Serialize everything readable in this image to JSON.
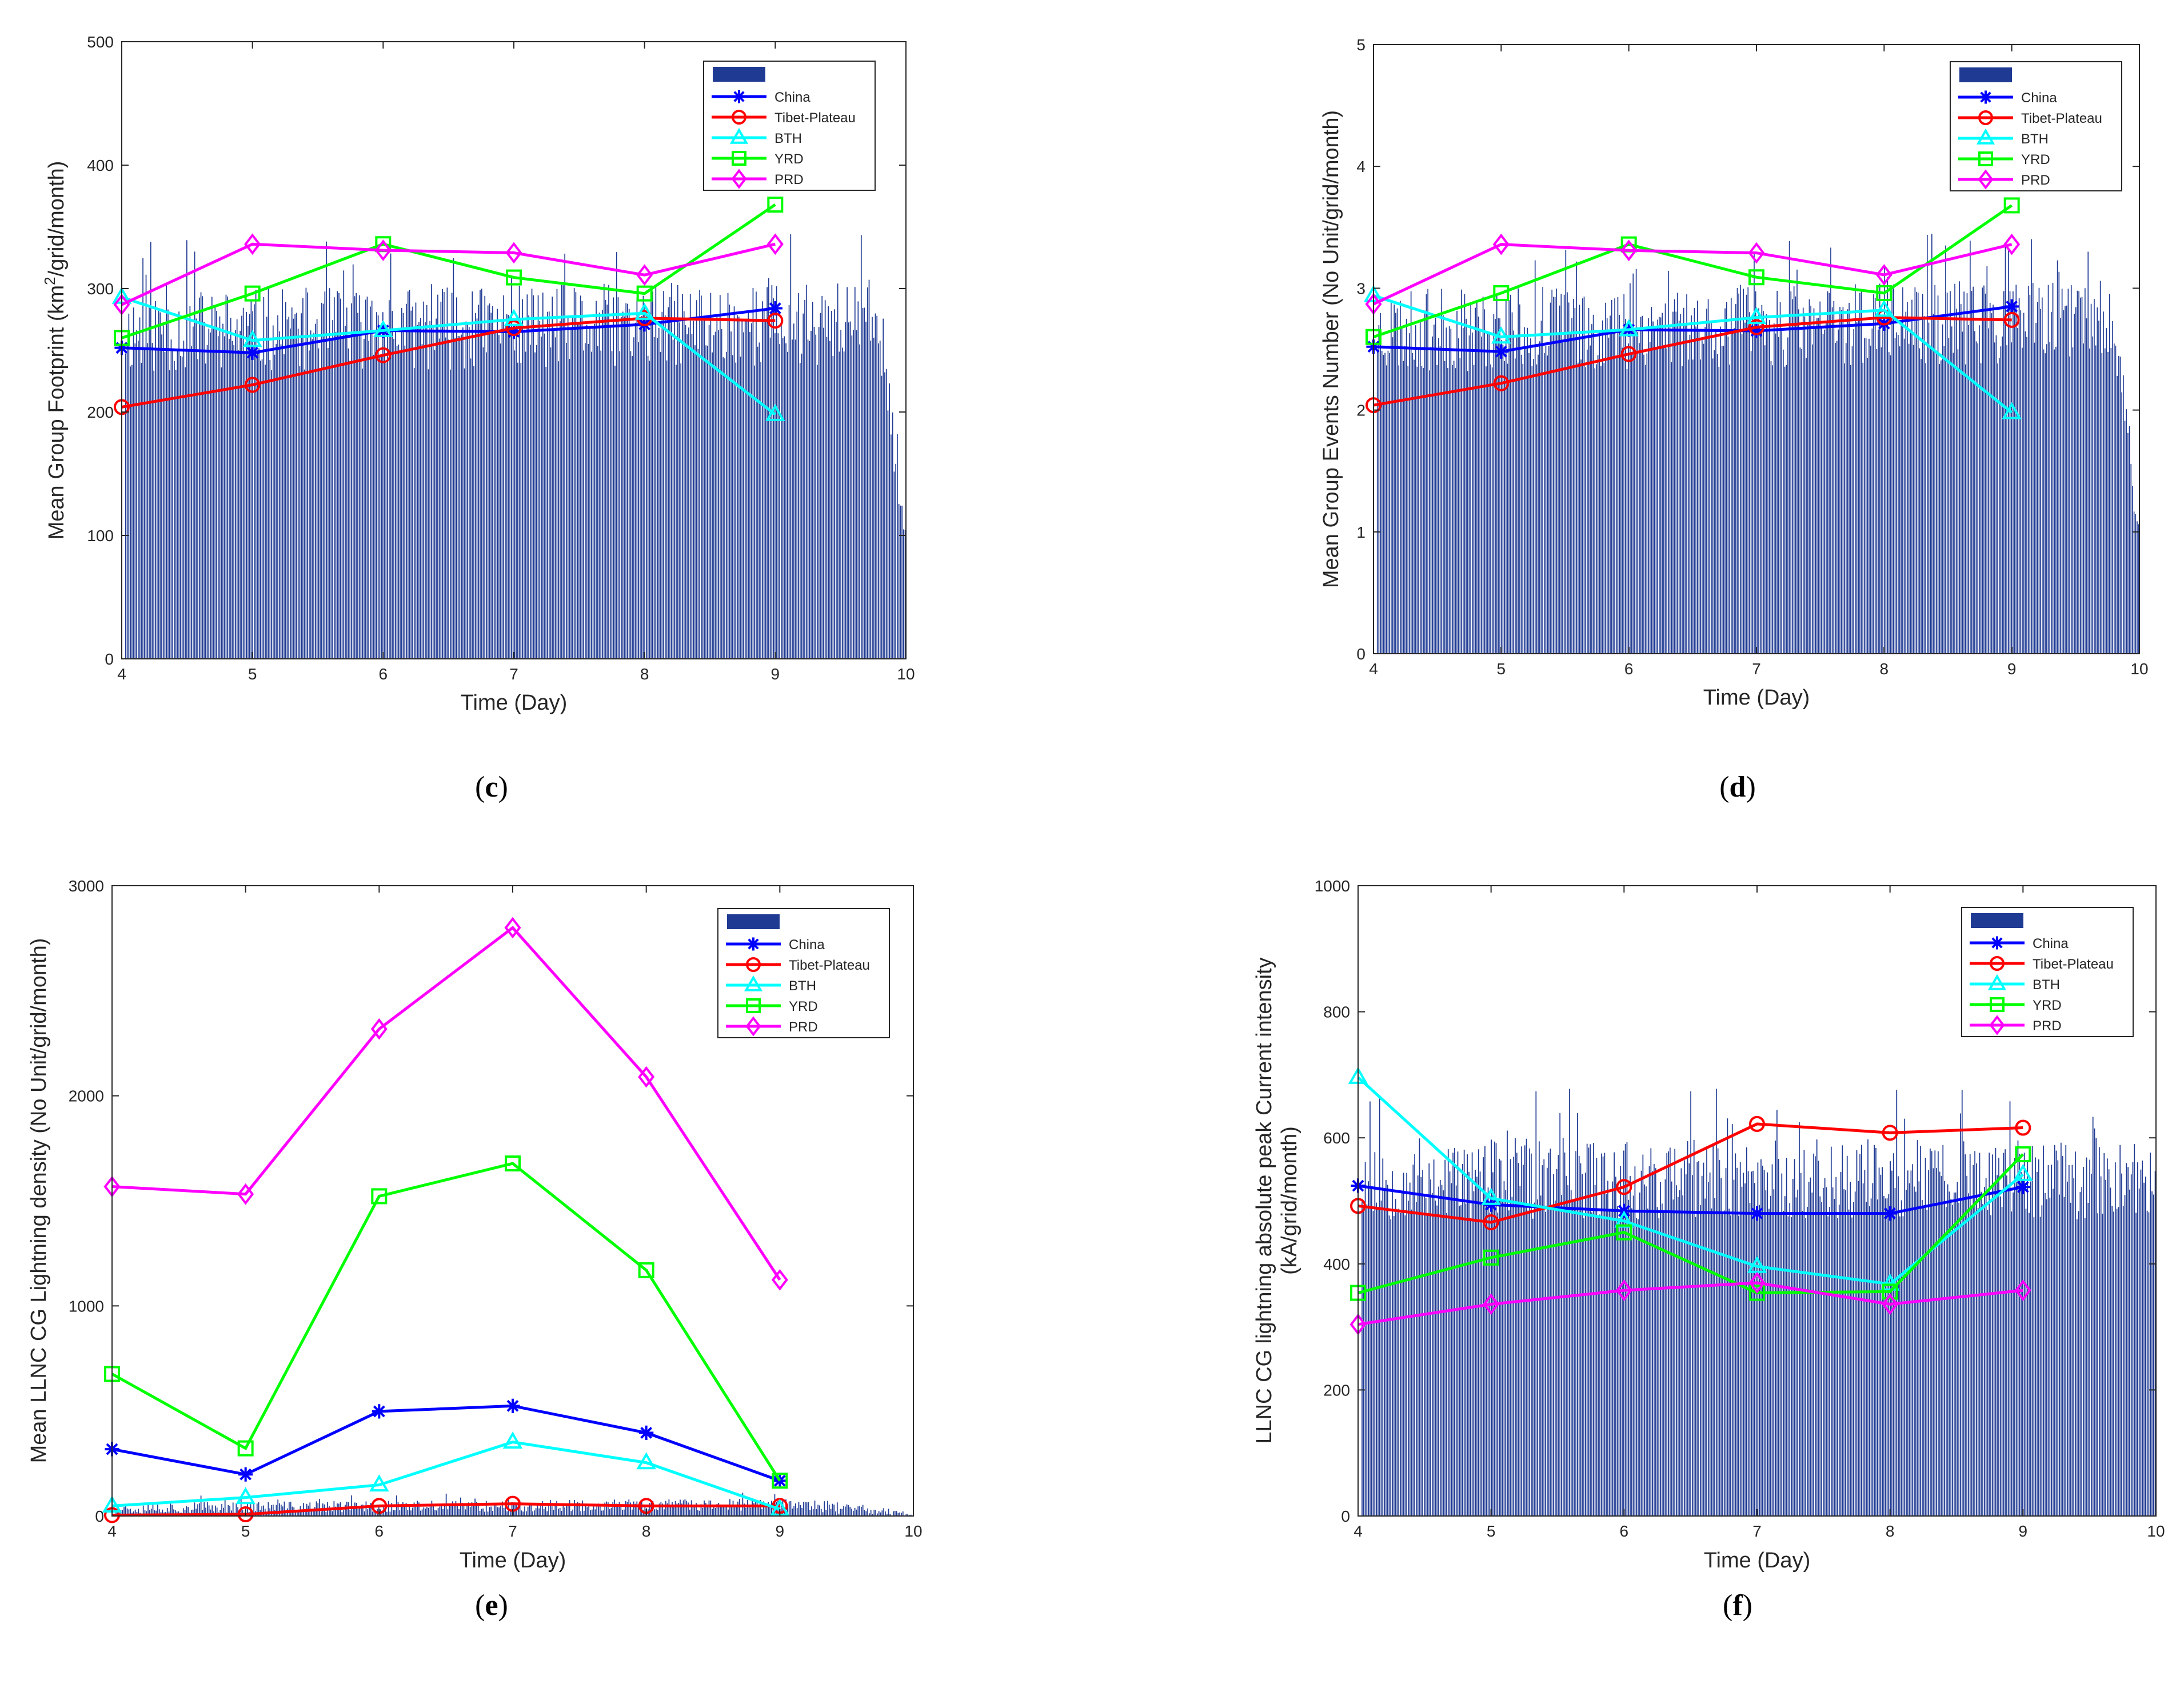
{
  "figure": {
    "panels_order": [
      "c",
      "d",
      "e",
      "f"
    ]
  },
  "chart_data": [
    {
      "panel": "c",
      "panel_label": "c",
      "type": "line",
      "xlabel": "Time (Day)",
      "ylabel_main": "Mean Group Footprint (km",
      "ylabel_sup": "2",
      "ylabel_after": "/grid/month)",
      "xlim": [
        4,
        10
      ],
      "ylim": [
        0,
        500
      ],
      "xticks": [
        4,
        5,
        6,
        7,
        8,
        9,
        10
      ],
      "yticks": [
        0,
        100,
        200,
        300,
        400,
        500
      ],
      "legend": {
        "placement": "top-right",
        "bar_entry_label": "",
        "entries": [
          "China",
          "Tibet-Plateau",
          "BTH",
          "YRD",
          "PRD"
        ]
      },
      "x": [
        4,
        5,
        6,
        7,
        8,
        9
      ],
      "series": [
        {
          "name": "China",
          "color": "#0000ff",
          "marker": "star",
          "values": [
            252,
            248,
            266,
            265,
            271,
            284
          ]
        },
        {
          "name": "Tibet-Plateau",
          "color": "#ff0000",
          "marker": "circle",
          "values": [
            204,
            222,
            246,
            268,
            276,
            274
          ]
        },
        {
          "name": "BTH",
          "color": "#00ffff",
          "marker": "triangle",
          "values": [
            293,
            258,
            266,
            275,
            280,
            198
          ]
        },
        {
          "name": "YRD",
          "color": "#00ff00",
          "marker": "square",
          "values": [
            260,
            296,
            336,
            309,
            296,
            368
          ]
        },
        {
          "name": "PRD",
          "color": "#ff00ff",
          "marker": "diamond",
          "values": [
            287,
            336,
            331,
            329,
            311,
            336
          ]
        }
      ],
      "bars": {
        "color": "#1f3a93",
        "bar_width_days": 0.012,
        "baseline": 265,
        "amplitude": 34,
        "trend": 4,
        "taper_start": 9.8,
        "taper_end": 10.0,
        "taper_floor": 100,
        "seed": 11
      }
    },
    {
      "panel": "d",
      "panel_label": "d",
      "type": "line",
      "xlabel": "Time (Day)",
      "ylabel_main": "Mean Group Events Number (No Unit/grid/month)",
      "ylabel_sup": "",
      "ylabel_after": "",
      "xlim": [
        4,
        10
      ],
      "ylim": [
        0,
        5
      ],
      "xticks": [
        4,
        5,
        6,
        7,
        8,
        9,
        10
      ],
      "yticks": [
        0,
        1,
        2,
        3,
        4,
        5
      ],
      "legend": {
        "placement": "top-right",
        "bar_entry_label": "",
        "entries": [
          "China",
          "Tibet-Plateau",
          "BTH",
          "YRD",
          "PRD"
        ]
      },
      "x": [
        4,
        5,
        6,
        7,
        8,
        9
      ],
      "series": [
        {
          "name": "China",
          "color": "#0000ff",
          "marker": "star",
          "values": [
            2.52,
            2.48,
            2.66,
            2.65,
            2.71,
            2.85
          ]
        },
        {
          "name": "Tibet-Plateau",
          "color": "#ff0000",
          "marker": "circle",
          "values": [
            2.04,
            2.22,
            2.46,
            2.68,
            2.76,
            2.74
          ]
        },
        {
          "name": "BTH",
          "color": "#00ffff",
          "marker": "triangle",
          "values": [
            2.94,
            2.6,
            2.66,
            2.76,
            2.82,
            1.98
          ]
        },
        {
          "name": "YRD",
          "color": "#00ff00",
          "marker": "square",
          "values": [
            2.6,
            2.96,
            3.36,
            3.09,
            2.96,
            3.68
          ]
        },
        {
          "name": "PRD",
          "color": "#ff00ff",
          "marker": "diamond",
          "values": [
            2.87,
            3.36,
            3.31,
            3.29,
            3.11,
            3.36
          ]
        }
      ],
      "bars": {
        "color": "#1f3a93",
        "bar_width_days": 0.012,
        "baseline": 2.65,
        "amplitude": 0.34,
        "trend": 0.04,
        "taper_start": 9.8,
        "taper_end": 10.0,
        "taper_floor": 1.0,
        "seed": 23
      }
    },
    {
      "panel": "e",
      "panel_label": "e",
      "type": "line",
      "xlabel": "Time (Day)",
      "ylabel_main": "Mean LLNC CG Lightning density (No Unit/grid/month)",
      "ylabel_sup": "",
      "ylabel_after": "",
      "xlim": [
        4,
        10
      ],
      "ylim": [
        0,
        3000
      ],
      "xticks": [
        4,
        5,
        6,
        7,
        8,
        9,
        10
      ],
      "yticks": [
        0,
        1000,
        2000,
        3000
      ],
      "legend": {
        "placement": "top-right",
        "bar_entry_label": "",
        "entries": [
          "China",
          "Tibet-Plateau",
          "BTH",
          "YRD",
          "PRD"
        ]
      },
      "x": [
        4,
        5,
        6,
        7,
        8,
        9
      ],
      "series": [
        {
          "name": "China",
          "color": "#0000ff",
          "marker": "star",
          "values": [
            318,
            198,
            498,
            524,
            396,
            168
          ]
        },
        {
          "name": "Tibet-Plateau",
          "color": "#ff0000",
          "marker": "circle",
          "values": [
            4,
            8,
            48,
            58,
            48,
            48
          ]
        },
        {
          "name": "BTH",
          "color": "#00ffff",
          "marker": "triangle",
          "values": [
            48,
            88,
            148,
            352,
            254,
            32
          ]
        },
        {
          "name": "YRD",
          "color": "#00ff00",
          "marker": "square",
          "values": [
            676,
            322,
            1522,
            1678,
            1170,
            168
          ]
        },
        {
          "name": "PRD",
          "color": "#ff00ff",
          "marker": "diamond",
          "values": [
            1568,
            1532,
            2318,
            2800,
            2090,
            1124
          ]
        }
      ],
      "bars": {
        "color": "#1f3a93",
        "bar_width_days": 0.012,
        "baseline": 38,
        "amplitude": 28,
        "trend": 10,
        "taper_start": 9.2,
        "taper_end": 10.0,
        "taper_floor": 4,
        "seed": 37
      }
    },
    {
      "panel": "f",
      "panel_label": "f",
      "type": "line",
      "xlabel": "Time (Day)",
      "ylabel_main": "LLNC CG lightning absolute peak Current intensity",
      "ylabel_sup": "",
      "ylabel_after": "",
      "ylabel_line2": "(kA/grid/month)",
      "xlim": [
        4,
        10
      ],
      "ylim": [
        0,
        1000
      ],
      "xticks": [
        4,
        5,
        6,
        7,
        8,
        9,
        10
      ],
      "yticks": [
        0,
        200,
        400,
        600,
        800,
        1000
      ],
      "legend": {
        "placement": "top-right",
        "bar_entry_label": "",
        "entries": [
          "China",
          "Tibet-Plateau",
          "BTH",
          "YRD",
          "PRD"
        ]
      },
      "x": [
        4,
        5,
        6,
        7,
        8,
        9
      ],
      "series": [
        {
          "name": "China",
          "color": "#0000ff",
          "marker": "star",
          "values": [
            524,
            494,
            484,
            480,
            480,
            522
          ]
        },
        {
          "name": "Tibet-Plateau",
          "color": "#ff0000",
          "marker": "circle",
          "values": [
            492,
            466,
            522,
            622,
            608,
            616
          ]
        },
        {
          "name": "BTH",
          "color": "#00ffff",
          "marker": "triangle",
          "values": [
            696,
            504,
            468,
            396,
            368,
            542
          ]
        },
        {
          "name": "YRD",
          "color": "#00ff00",
          "marker": "square",
          "values": [
            354,
            410,
            450,
            354,
            356,
            574
          ]
        },
        {
          "name": "PRD",
          "color": "#ff00ff",
          "marker": "diamond",
          "values": [
            304,
            336,
            358,
            370,
            336,
            358
          ]
        }
      ],
      "bars": {
        "color": "#1f3a93",
        "bar_width_days": 0.012,
        "baseline": 535,
        "amplitude": 65,
        "trend": 0,
        "taper_start": 10.1,
        "taper_end": 10.2,
        "taper_floor": 500,
        "seed": 53
      }
    }
  ]
}
